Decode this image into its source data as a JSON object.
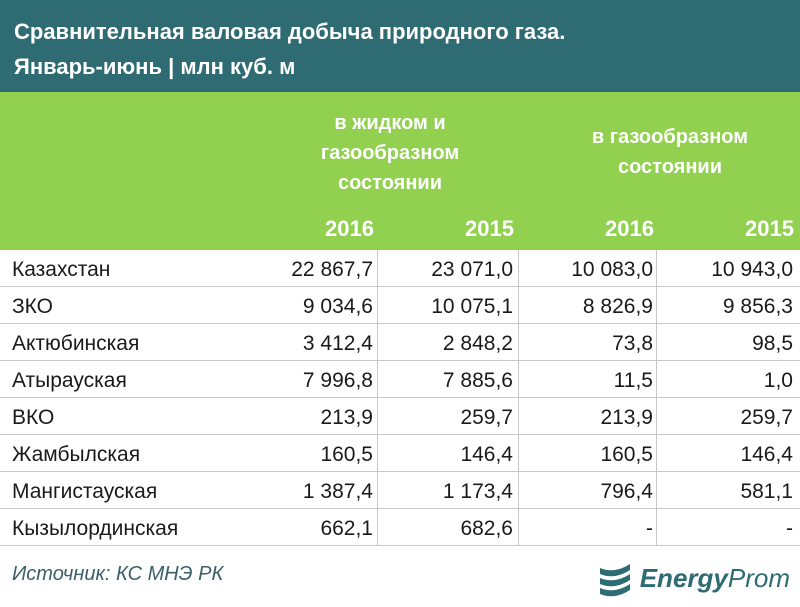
{
  "title": {
    "line1": "Сравнительная валовая добыча природного газа.",
    "line2": "Январь-июнь | млн куб. м"
  },
  "chart_data": {
    "type": "table",
    "column_groups": [
      {
        "label_lines": [
          "в жидком и",
          "газообразном",
          "состоянии"
        ],
        "years": [
          "2016",
          "2015"
        ]
      },
      {
        "label_lines": [
          "в газообразном",
          "состоянии"
        ],
        "years": [
          "2016",
          "2015"
        ]
      }
    ],
    "rows": [
      {
        "name": "Казахстан",
        "values": [
          "22 867,7",
          "23 071,0",
          "10 083,0",
          "10 943,0"
        ]
      },
      {
        "name": "ЗКО",
        "values": [
          "9 034,6",
          "10 075,1",
          "8 826,9",
          "9 856,3"
        ]
      },
      {
        "name": "Актюбинская",
        "values": [
          "3 412,4",
          "2 848,2",
          "73,8",
          "98,5"
        ]
      },
      {
        "name": "Атырауская",
        "values": [
          "7 996,8",
          "7 885,6",
          "11,5",
          "1,0"
        ]
      },
      {
        "name": "ВКО",
        "values": [
          "213,9",
          "259,7",
          "213,9",
          "259,7"
        ]
      },
      {
        "name": "Жамбылская",
        "values": [
          "160,5",
          "146,4",
          "160,5",
          "146,4"
        ]
      },
      {
        "name": "Мангистауская",
        "values": [
          "1 387,4",
          "1 173,4",
          "796,4",
          "581,1"
        ]
      },
      {
        "name": "Кызылординская",
        "values": [
          "662,1",
          "682,6",
          "-",
          "-"
        ]
      }
    ]
  },
  "footer": {
    "source": "Источник: КС МНЭ РК",
    "logo_bold": "Energy",
    "logo_light": "Prom"
  },
  "colors": {
    "title_bg": "#2e6b72",
    "header_bg": "#92d050",
    "header_text": "#ffffff"
  }
}
